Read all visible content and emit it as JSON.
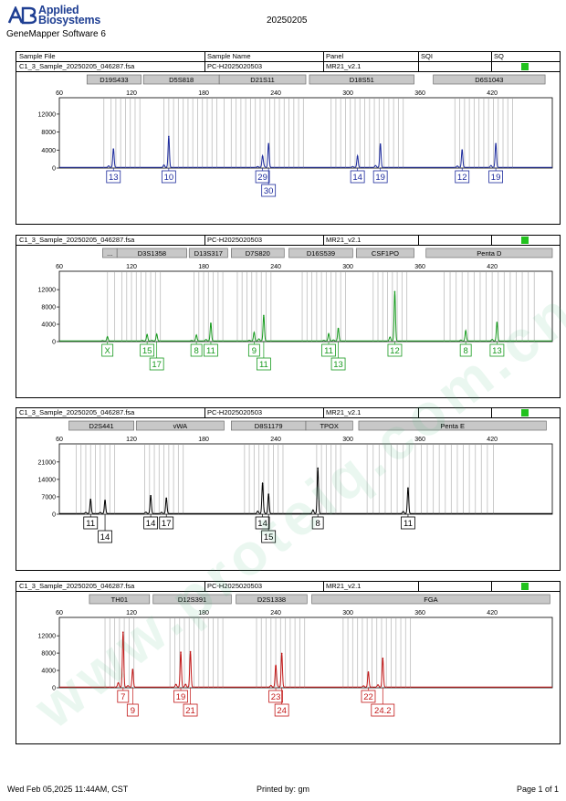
{
  "header": {
    "brand_line1": "Applied",
    "brand_line2": "Biosystems",
    "logo_text": "AB",
    "app_title": "GeneMapper Software 6",
    "run_date": "20250205"
  },
  "columns": {
    "sample_file": "Sample File",
    "sample_name": "Sample Name",
    "panel": "Panel",
    "sqi": "SQI",
    "sq": "SQ"
  },
  "colors": {
    "blue": "#1c2a9c",
    "green": "#179a1e",
    "black": "#000000",
    "red": "#c21818",
    "sq_pass": "#22c21e"
  },
  "panels": [
    {
      "sample_file": "C1_3_Sample_20250205_046287.fsa",
      "sample_name": "PC-H2025020503",
      "panel": "MR21_v2.1"
    },
    {
      "sample_file": "C1_3_Sample_20250205_046287.fsa",
      "sample_name": "PC-H2025020503",
      "panel": "MR21_v2.1"
    },
    {
      "sample_file": "C1_3_Sample_20250205_046287.fsa",
      "sample_name": "PC-H2025020503",
      "panel": "MR21_v2.1"
    },
    {
      "sample_file": "C1_3_Sample_20250205_046287.fsa",
      "sample_name": "PC-H2025020503",
      "panel": "MR21_v2.1"
    }
  ],
  "chart_data": [
    {
      "type": "line",
      "dye": "blue",
      "xlim": [
        60,
        470
      ],
      "xticks": [
        60,
        120,
        180,
        240,
        300,
        360,
        420
      ],
      "ylim": [
        0,
        13000
      ],
      "yticks": [
        0,
        4000,
        8000,
        12000
      ],
      "markers": [
        {
          "label": "D19S433",
          "range": [
            83,
            128
          ],
          "bins": [
            97,
            103,
            107,
            111,
            115,
            119,
            123,
            127
          ]
        },
        {
          "label": "D5S818",
          "range": [
            130,
            193
          ],
          "bins": [
            147,
            151,
            155,
            159,
            163,
            167,
            171,
            175,
            179,
            183,
            187,
            191
          ]
        },
        {
          "label": "D21S11",
          "range": [
            193,
            265
          ],
          "bins": [
            197,
            203,
            207,
            211,
            215,
            219,
            223,
            227,
            231,
            235,
            239,
            243,
            247,
            251,
            255,
            259,
            263
          ]
        },
        {
          "label": "D18S51",
          "range": [
            268,
            355
          ],
          "bins": [
            286,
            290,
            294,
            298,
            302,
            306,
            310,
            314,
            318,
            322,
            326,
            330,
            334,
            338,
            342,
            346
          ]
        },
        {
          "label": "D6S1043",
          "range": [
            371,
            464
          ],
          "bins": [
            389,
            393,
            397,
            401,
            405,
            409,
            413,
            417,
            421,
            425,
            429,
            433,
            437
          ]
        }
      ],
      "peaks": [
        {
          "x": 105,
          "y": 4200,
          "allele": "13"
        },
        {
          "x": 151,
          "y": 7000,
          "allele": "10"
        },
        {
          "x": 229,
          "y": 2500,
          "allele": "29"
        },
        {
          "x": 234,
          "y": 5400,
          "allele": "30"
        },
        {
          "x": 308,
          "y": 2600,
          "allele": "14"
        },
        {
          "x": 327,
          "y": 5300,
          "allele": "19"
        },
        {
          "x": 395,
          "y": 4000,
          "allele": "12"
        },
        {
          "x": 423,
          "y": 5400,
          "allele": "19"
        }
      ]
    },
    {
      "type": "line",
      "dye": "green",
      "xlim": [
        60,
        470
      ],
      "xticks": [
        60,
        120,
        180,
        240,
        300,
        360,
        420
      ],
      "ylim": [
        0,
        13500
      ],
      "yticks": [
        0,
        4000,
        8000,
        12000
      ],
      "markers": [
        {
          "label": "...",
          "range": [
            96,
            108
          ],
          "bins": [
            100,
            106
          ]
        },
        {
          "label": "D3S1358",
          "range": [
            108,
            166
          ],
          "bins": [
            112,
            116,
            120,
            124,
            128,
            132,
            136,
            140,
            144
          ]
        },
        {
          "label": "D13S317",
          "range": [
            168,
            200
          ],
          "bins": [
            172,
            176,
            180,
            184,
            188,
            192,
            196
          ]
        },
        {
          "label": "D7S820",
          "range": [
            203,
            247
          ],
          "bins": [
            208,
            212,
            216,
            220,
            224,
            228,
            232,
            236
          ]
        },
        {
          "label": "D16S539",
          "range": [
            251,
            304
          ],
          "bins": [
            262,
            266,
            270,
            274,
            278,
            282,
            286,
            290,
            294,
            298
          ]
        },
        {
          "label": "CSF1PO",
          "range": [
            307,
            355
          ],
          "bins": [
            321,
            325,
            329,
            333,
            337,
            341,
            345,
            349
          ]
        },
        {
          "label": "Penta D",
          "range": [
            365,
            470
          ],
          "bins": [
            380,
            385,
            390,
            395,
            400,
            405,
            410,
            415,
            420,
            425,
            430,
            435,
            440,
            445,
            450,
            455
          ]
        }
      ],
      "peaks": [
        {
          "x": 100,
          "y": 1000,
          "allele": "X"
        },
        {
          "x": 133,
          "y": 1500,
          "allele": "15"
        },
        {
          "x": 141,
          "y": 1600,
          "allele": "17"
        },
        {
          "x": 174,
          "y": 1400,
          "allele": "8"
        },
        {
          "x": 186,
          "y": 4200,
          "allele": "11"
        },
        {
          "x": 222,
          "y": 2000,
          "allele": "9"
        },
        {
          "x": 230,
          "y": 6000,
          "allele": "11"
        },
        {
          "x": 284,
          "y": 1700,
          "allele": "11"
        },
        {
          "x": 292,
          "y": 3000,
          "allele": "13"
        },
        {
          "x": 339,
          "y": 11500,
          "allele": "12"
        },
        {
          "x": 398,
          "y": 2400,
          "allele": "8"
        },
        {
          "x": 424,
          "y": 4400,
          "allele": "13"
        }
      ]
    },
    {
      "type": "line",
      "dye": "black",
      "xlim": [
        60,
        470
      ],
      "xticks": [
        60,
        120,
        180,
        240,
        300,
        360,
        420
      ],
      "ylim": [
        0,
        23500
      ],
      "yticks": [
        0,
        7000,
        14000,
        21000
      ],
      "markers": [
        {
          "label": "D2S441",
          "range": [
            68,
            122
          ],
          "bins": [
            74,
            78,
            82,
            86,
            90,
            94,
            98,
            102,
            106
          ]
        },
        {
          "label": "vWA",
          "range": [
            124,
            197
          ],
          "bins": [
            131,
            135,
            139,
            143,
            147,
            151,
            155,
            159,
            163
          ]
        },
        {
          "label": "D8S1179",
          "range": [
            203,
            265
          ],
          "bins": [
            214,
            218,
            222,
            226,
            230,
            234,
            238,
            242,
            246
          ]
        },
        {
          "label": "TPOX",
          "range": [
            265,
            304
          ],
          "bins": [
            274,
            278,
            282,
            286,
            290,
            294
          ]
        },
        {
          "label": "Penta E",
          "range": [
            309,
            465
          ],
          "bins": [
            316,
            321,
            326,
            331,
            336,
            341,
            346,
            351,
            356,
            361,
            366,
            371,
            376,
            381,
            386,
            391,
            396,
            401,
            406,
            411,
            416,
            421
          ]
        }
      ],
      "peaks": [
        {
          "x": 86,
          "y": 5900,
          "allele": "11"
        },
        {
          "x": 98,
          "y": 5500,
          "allele": "14"
        },
        {
          "x": 136,
          "y": 7400,
          "allele": "14"
        },
        {
          "x": 149,
          "y": 6400,
          "allele": "17"
        },
        {
          "x": 229,
          "y": 12300,
          "allele": "14"
        },
        {
          "x": 234,
          "y": 8000,
          "allele": "15"
        },
        {
          "x": 275,
          "y": 18500,
          "allele": "8"
        },
        {
          "x": 350,
          "y": 10500,
          "allele": "11"
        }
      ]
    },
    {
      "type": "line",
      "dye": "red",
      "xlim": [
        60,
        470
      ],
      "xticks": [
        60,
        120,
        180,
        240,
        300,
        360,
        420
      ],
      "ylim": [
        0,
        13500
      ],
      "yticks": [
        0,
        4000,
        8000,
        12000
      ],
      "markers": [
        {
          "label": "TH01",
          "range": [
            85,
            135
          ],
          "bins": [
            98,
            102,
            106,
            110,
            114,
            118,
            122
          ]
        },
        {
          "label": "D12S391",
          "range": [
            138,
            203
          ],
          "bins": [
            152,
            156,
            160,
            164,
            168,
            172,
            176,
            180,
            184,
            188,
            192,
            196
          ]
        },
        {
          "label": "D2S1338",
          "range": [
            207,
            266
          ],
          "bins": [
            224,
            228,
            232,
            236,
            240,
            244,
            248,
            252,
            256,
            260,
            264
          ]
        },
        {
          "label": "FGA",
          "range": [
            270,
            468
          ],
          "bins": [
            296,
            300,
            304,
            308,
            312,
            316,
            320,
            324,
            328,
            332,
            336,
            340,
            344,
            348,
            352
          ]
        }
      ],
      "peaks": [
        {
          "x": 113,
          "y": 12800,
          "allele": "7"
        },
        {
          "x": 121,
          "y": 4200,
          "allele": "9"
        },
        {
          "x": 161,
          "y": 8200,
          "allele": "19"
        },
        {
          "x": 169,
          "y": 8300,
          "allele": "21"
        },
        {
          "x": 240,
          "y": 5000,
          "allele": "23"
        },
        {
          "x": 245,
          "y": 7900,
          "allele": "24"
        },
        {
          "x": 317,
          "y": 3600,
          "allele": "22"
        },
        {
          "x": 329,
          "y": 6800,
          "allele": "24.2"
        }
      ]
    }
  ],
  "footer": {
    "printed_at": "Wed Feb 05,2025 11:44AM, CST",
    "printed_by": "Printed by: gm",
    "page": "Page 1 of 1"
  }
}
